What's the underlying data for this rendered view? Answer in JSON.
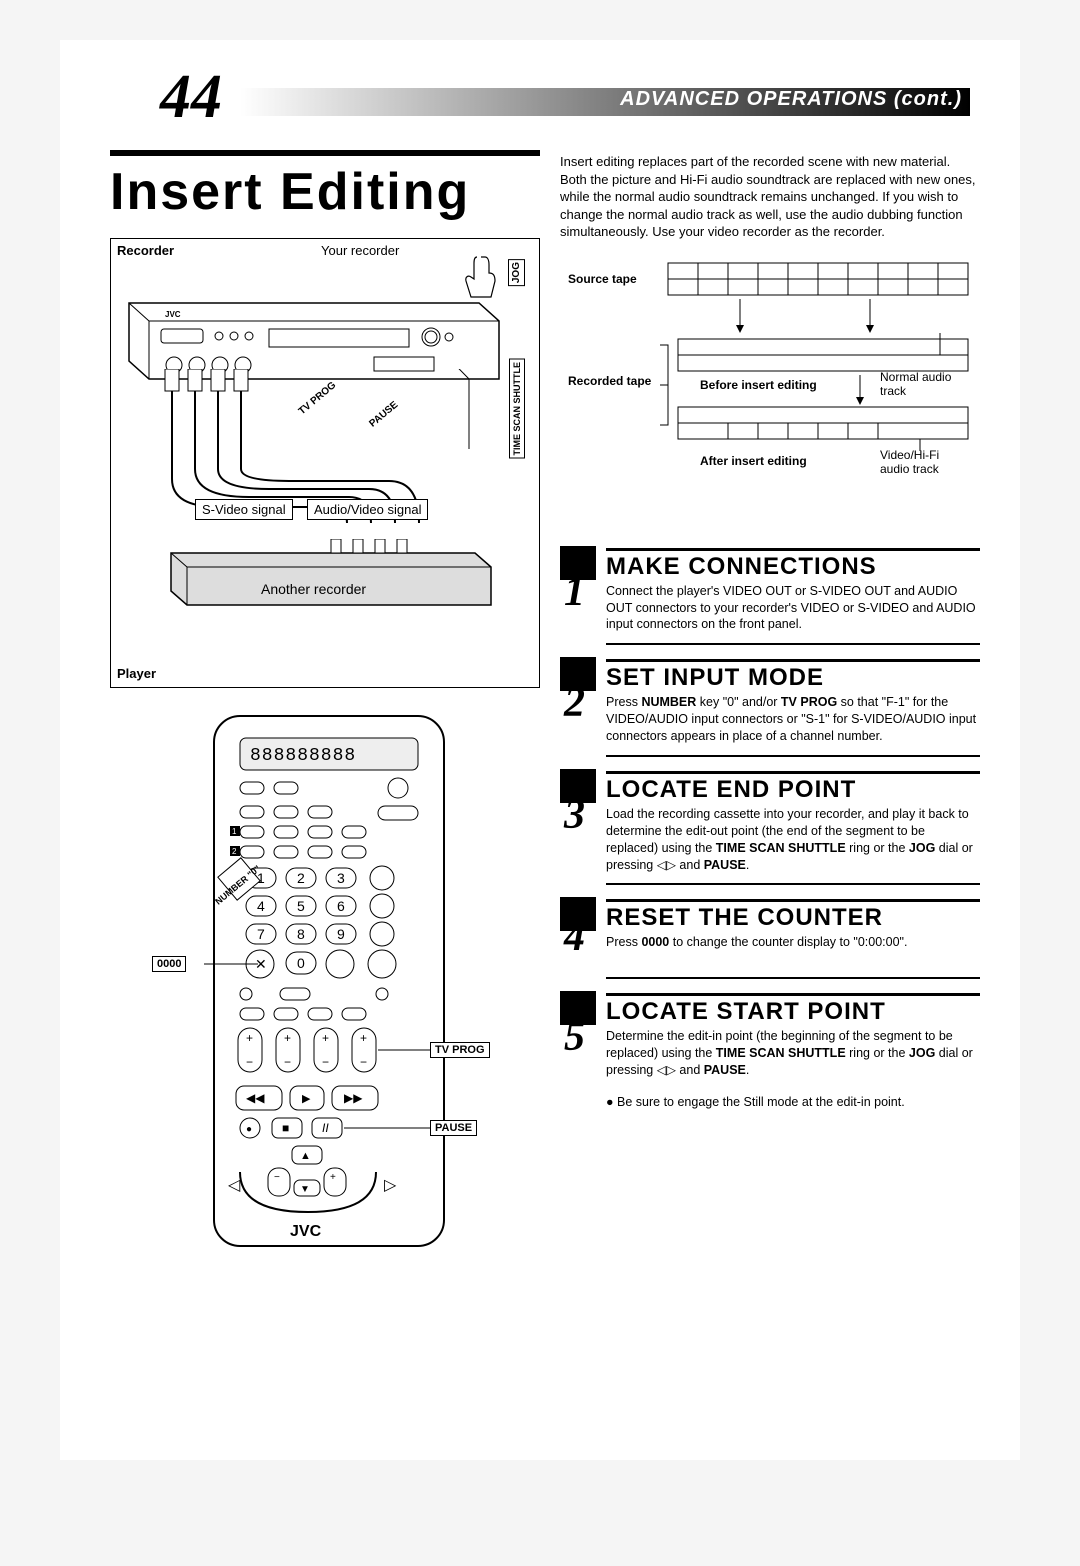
{
  "page_number": "44",
  "header_title": "ADVANCED OPERATIONS (cont.)",
  "main_title": "Insert Editing",
  "intro": "Insert editing replaces part of the recorded scene with new material. Both the picture and Hi-Fi audio soundtrack are replaced with new ones, while the normal audio soundtrack remains unchanged. If you wish to change the normal audio track as well, use the audio dubbing function simultaneously. Use your video recorder as the recorder.",
  "conn_diagram": {
    "recorder_bold": "Recorder",
    "recorder_text": "Your recorder",
    "svideo": "S-Video signal",
    "av": "Audio/Video signal",
    "another": "Another recorder",
    "player_bold": "Player",
    "jog": "JOG",
    "timescan": "TIME SCAN SHUTTLE",
    "tvprog": "TV PROG",
    "pause": "PAUSE",
    "brand": "JVC"
  },
  "tape_diagram": {
    "source": "Source tape",
    "recorded": "Recorded tape",
    "before": "Before insert editing",
    "after": "After insert editing",
    "normal": "Normal audio track",
    "video_hifi": "Video/Hi-Fi audio track"
  },
  "remote": {
    "zero_btn": "0000",
    "tvprog": "TV PROG",
    "pause": "PAUSE",
    "number0": "NUMBER \"0\"",
    "brand": "JVC",
    "digits": [
      "1",
      "2",
      "3",
      "4",
      "5",
      "6",
      "7",
      "8",
      "9"
    ]
  },
  "steps": [
    {
      "num": "1",
      "title": "MAKE CONNECTIONS",
      "body": "Connect the player's VIDEO OUT or S-VIDEO OUT and AUDIO OUT connectors to your recorder's VIDEO or S-VIDEO and AUDIO input connectors on the front panel."
    },
    {
      "num": "2",
      "title": "SET INPUT MODE",
      "body_html": "Press <b>NUMBER</b> key \"0\" and/or <b>TV PROG</b> so that \"F-1\" for the VIDEO/AUDIO input connectors or \"S-1\" for S-VIDEO/AUDIO input connectors appears in place of a channel number."
    },
    {
      "num": "3",
      "title": "LOCATE END POINT",
      "body_html": "Load the recording cassette into your recorder, and play it back to determine the edit-out point (the end of the segment to be replaced) using the <b>TIME SCAN SHUTTLE</b> ring or the <b>JOG</b> dial or pressing ◁▷ and <b>PAUSE</b>."
    },
    {
      "num": "4",
      "title": "RESET THE COUNTER",
      "body_html": "Press <b>0000</b> to change the counter display to \"0:00:00\"."
    },
    {
      "num": "5",
      "title": "LOCATE START POINT",
      "body_html": "Determine the edit-in point (the beginning of the segment to be replaced) using the <b>TIME SCAN SHUTTLE</b> ring or the <b>JOG</b> dial or pressing ◁▷ and <b>PAUSE</b>.",
      "bullet": "● Be sure to engage the Still mode at the edit-in point."
    }
  ]
}
